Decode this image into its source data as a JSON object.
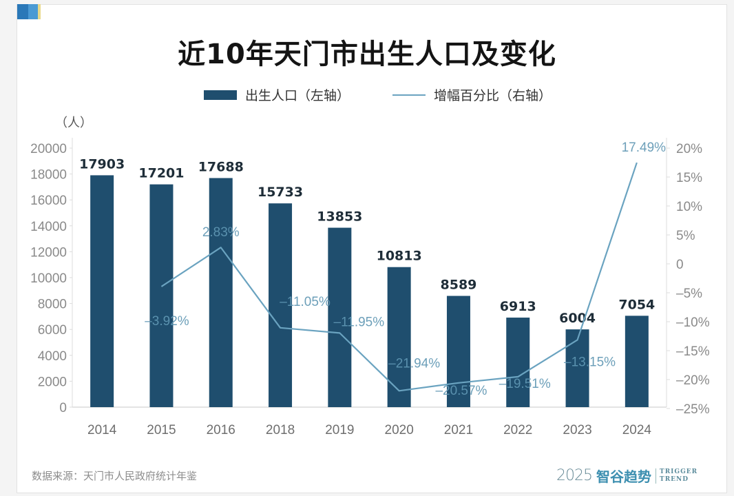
{
  "title": "近10年天门市出生人口及变化",
  "unit_label": "（人）",
  "source": "数据来源：天门市人民政府统计年鉴",
  "brand": {
    "year": "2025",
    "name": "智谷趋势",
    "en_line1": "TRIGGER",
    "en_line2": "TREND"
  },
  "colors": {
    "bar": "#1f4e6e",
    "line": "#6aa3c0",
    "bar_label": "#1e2d38",
    "line_label": "#5f97b3",
    "axis_text": "#8a8a8a"
  },
  "chart_data": {
    "type": "bar+line",
    "title": "近10年天门市出生人口及变化",
    "categories": [
      "2014",
      "2015",
      "2016",
      "2018",
      "2019",
      "2020",
      "2021",
      "2022",
      "2023",
      "2024"
    ],
    "series": [
      {
        "name": "出生人口（左轴）",
        "type": "bar",
        "axis": "left",
        "values": [
          17903,
          17201,
          17688,
          15733,
          13853,
          10813,
          8589,
          6913,
          6004,
          7054
        ],
        "labels": [
          "17903",
          "17201",
          "17688",
          "15733",
          "13853",
          "10813",
          "8589",
          "6913",
          "6004",
          "7054"
        ]
      },
      {
        "name": "增幅百分比（右轴）",
        "type": "line",
        "axis": "right",
        "values": [
          null,
          -3.92,
          2.83,
          -11.05,
          -11.95,
          -21.94,
          -20.57,
          -19.51,
          -13.15,
          17.49
        ],
        "labels": [
          null,
          "-3.92%",
          "2.83%",
          "-11.05%",
          "-11.95%",
          "-21.94%",
          "-20.57%",
          "-19.51%",
          "-13.15%",
          "17.49%"
        ]
      }
    ],
    "left_axis": {
      "label": "（人）",
      "ylim": [
        0,
        20000
      ],
      "ticks": [
        0,
        2000,
        4000,
        6000,
        8000,
        10000,
        12000,
        14000,
        16000,
        18000,
        20000
      ],
      "tick_labels": [
        "0",
        "2000",
        "4000",
        "6000",
        "8000",
        "10000",
        "12000",
        "14000",
        "16000",
        "18000",
        "20000"
      ]
    },
    "right_axis": {
      "ylim": [
        -25,
        20
      ],
      "ticks": [
        -25,
        -20,
        -15,
        -10,
        -5,
        0,
        5,
        10,
        15,
        20
      ],
      "tick_labels": [
        "-25%",
        "-20%",
        "-15%",
        "-10%",
        "-5%",
        "0",
        "5%",
        "10%",
        "15%",
        "20%"
      ]
    },
    "legend": {
      "position": "top-center",
      "entries": [
        "出生人口（左轴）",
        "增幅百分比（右轴）"
      ]
    },
    "grid": false
  }
}
